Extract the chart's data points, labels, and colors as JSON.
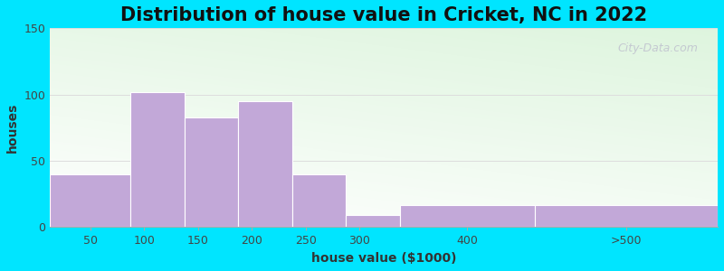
{
  "title": "Distribution of house value in Cricket, NC in 2022",
  "xlabel": "house value ($1000)",
  "ylabel": "houses",
  "bin_edges": [
    0,
    75,
    125,
    175,
    225,
    275,
    325,
    450,
    620
  ],
  "tick_positions": [
    50,
    100,
    150,
    200,
    250,
    300,
    400,
    ">500"
  ],
  "bar_values": [
    40,
    102,
    83,
    95,
    40,
    9,
    17,
    17
  ],
  "bar_color": "#c2a8d8",
  "ylim": [
    0,
    150
  ],
  "yticks": [
    0,
    50,
    100,
    150
  ],
  "background_outer": "#00e5ff",
  "watermark": "City-Data.com",
  "title_fontsize": 15,
  "axis_label_fontsize": 10,
  "tick_fontsize": 9,
  "grid_color": "#dddddd"
}
